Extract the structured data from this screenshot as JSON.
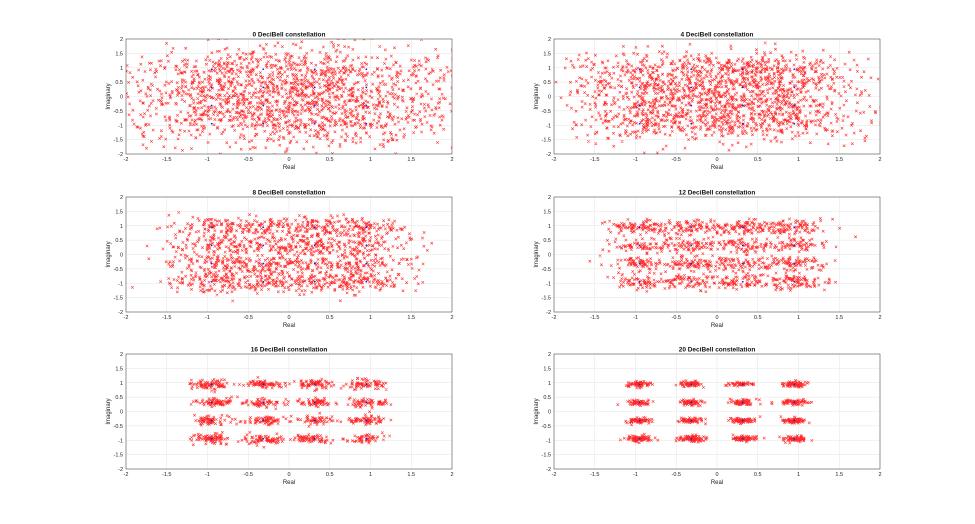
{
  "chart_data": [
    {
      "type": "scatter",
      "title": "0 DeciBell constellation",
      "xlabel": "Real",
      "ylabel": "Imaginary",
      "xlim": [
        -2,
        2
      ],
      "ylim": [
        -2,
        2
      ],
      "xticks": [
        "-2",
        "-1.5",
        "-1",
        "-0.5",
        "0",
        "0.5",
        "1",
        "1.5",
        "2"
      ],
      "yticks": [
        "2",
        "1.5",
        "1",
        "0.5",
        "0",
        "-0.5",
        "-1",
        "-1.5",
        "-2"
      ],
      "grid": true,
      "snr_db": 0,
      "noise_sigma": 0.5,
      "series": [
        {
          "color": "#ff0000",
          "marker": "x"
        },
        {
          "color": "#1a1aff",
          "marker": "dot"
        }
      ],
      "ideal_points": {
        "i": [
          -0.949,
          -0.316,
          0.316,
          0.949
        ],
        "q": [
          -0.949,
          -0.316,
          0.316,
          0.949
        ]
      }
    },
    {
      "type": "scatter",
      "title": "4 DeciBell constellation",
      "xlabel": "Real",
      "ylabel": "Imaginary",
      "xlim": [
        -2,
        2
      ],
      "ylim": [
        -2,
        2
      ],
      "xticks": [
        "-2",
        "-1.5",
        "-1",
        "-0.5",
        "0",
        "0.5",
        "1",
        "1.5",
        "2"
      ],
      "yticks": [
        "2",
        "1.5",
        "1",
        "0.5",
        "0",
        "-0.5",
        "-1",
        "-1.5",
        "-2"
      ],
      "grid": true,
      "snr_db": 4,
      "noise_sigma": 0.32,
      "series": [
        {
          "color": "#ff0000",
          "marker": "x"
        },
        {
          "color": "#1a1aff",
          "marker": "dot"
        }
      ],
      "ideal_points": {
        "i": [
          -0.949,
          -0.316,
          0.316,
          0.949
        ],
        "q": [
          -0.949,
          -0.316,
          0.316,
          0.949
        ]
      }
    },
    {
      "type": "scatter",
      "title": "8 DeciBell constellation",
      "xlabel": "Real",
      "ylabel": "Imaginary",
      "xlim": [
        -2,
        2
      ],
      "ylim": [
        -2,
        2
      ],
      "xticks": [
        "-2",
        "-1.5",
        "-1",
        "-0.5",
        "0",
        "0.5",
        "1",
        "1.5",
        "2"
      ],
      "yticks": [
        "2",
        "1.5",
        "1",
        "0.5",
        "0",
        "-0.5",
        "-1",
        "-1.5",
        "-2"
      ],
      "grid": true,
      "snr_db": 8,
      "noise_sigma": 0.2,
      "series": [
        {
          "color": "#ff0000",
          "marker": "x"
        },
        {
          "color": "#1a1aff",
          "marker": "dot"
        }
      ],
      "ideal_points": {
        "i": [
          -0.949,
          -0.316,
          0.316,
          0.949
        ],
        "q": [
          -0.949,
          -0.316,
          0.316,
          0.949
        ]
      }
    },
    {
      "type": "scatter",
      "title": "12 DeciBell constellation",
      "xlabel": "Real",
      "ylabel": "Imaginary",
      "xlim": [
        -2,
        2
      ],
      "ylim": [
        -2,
        2
      ],
      "xticks": [
        "-2",
        "-1.5",
        "-1",
        "-0.5",
        "0",
        "0.5",
        "1",
        "1.5",
        "2"
      ],
      "yticks": [
        "2",
        "1.5",
        "1",
        "0.5",
        "0",
        "-0.5",
        "-1",
        "-1.5",
        "-2"
      ],
      "grid": true,
      "snr_db": 12,
      "noise_sigma": 0.13,
      "series": [
        {
          "color": "#ff0000",
          "marker": "x"
        },
        {
          "color": "#1a1aff",
          "marker": "dot"
        }
      ],
      "ideal_points": {
        "i": [
          -0.949,
          -0.316,
          0.316,
          0.949
        ],
        "q": [
          -0.949,
          -0.316,
          0.316,
          0.949
        ]
      }
    },
    {
      "type": "scatter",
      "title": "16 DeciBell constellation",
      "xlabel": "Real",
      "ylabel": "Imaginary",
      "xlim": [
        -2,
        2
      ],
      "ylim": [
        -2,
        2
      ],
      "xticks": [
        "-2",
        "-1.5",
        "-1",
        "-0.5",
        "0",
        "0.5",
        "1",
        "1.5",
        "2"
      ],
      "yticks": [
        "2",
        "1.5",
        "1",
        "0.5",
        "0",
        "-0.5",
        "-1",
        "-1.5",
        "-2"
      ],
      "grid": true,
      "snr_db": 16,
      "noise_sigma": 0.08,
      "series": [
        {
          "color": "#ff0000",
          "marker": "x"
        },
        {
          "color": "#1a1aff",
          "marker": "dot"
        }
      ],
      "ideal_points": {
        "i": [
          -0.949,
          -0.316,
          0.316,
          0.949
        ],
        "q": [
          -0.949,
          -0.316,
          0.316,
          0.949
        ]
      }
    },
    {
      "type": "scatter",
      "title": "20 DeciBell constellation",
      "xlabel": "Real",
      "ylabel": "Imaginary",
      "xlim": [
        -2,
        2
      ],
      "ylim": [
        -2,
        2
      ],
      "xticks": [
        "-2",
        "-1.5",
        "-1",
        "-0.5",
        "0",
        "0.5",
        "1",
        "1.5",
        "2"
      ],
      "yticks": [
        "2",
        "1.5",
        "1",
        "0.5",
        "0",
        "-0.5",
        "-1",
        "-1.5",
        "-2"
      ],
      "grid": true,
      "snr_db": 20,
      "noise_sigma": 0.05,
      "series": [
        {
          "color": "#ff0000",
          "marker": "x"
        },
        {
          "color": "#1a1aff",
          "marker": "dot"
        }
      ],
      "ideal_points": {
        "i": [
          -0.949,
          -0.316,
          0.316,
          0.949
        ],
        "q": [
          -0.949,
          -0.316,
          0.316,
          0.949
        ]
      }
    }
  ]
}
